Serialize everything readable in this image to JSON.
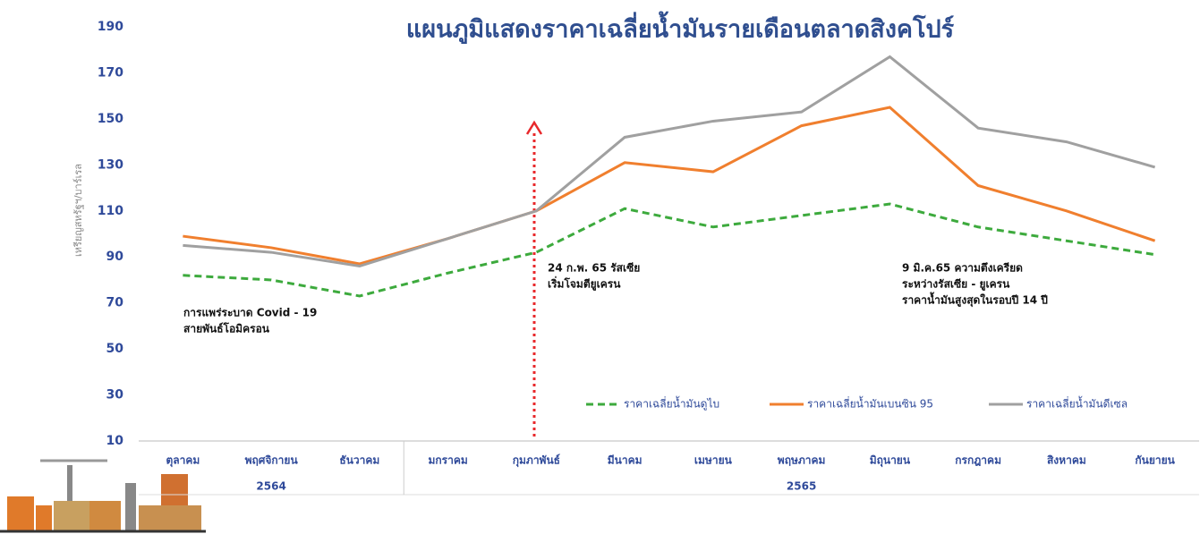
{
  "chart_data": {
    "type": "line",
    "title": "แผนภูมิแสดงราคาเฉลี่ยน้ำมันรายเดือนตลาดสิงคโปร์",
    "y_label": "เหรียญสหรัฐฯ/บาร์เรล",
    "categories": [
      "ตุลาคม",
      "พฤศจิกายน",
      "ธันวาคม",
      "มกราคม",
      "กุมภาพันธ์",
      "มีนาคม",
      "เมษายน",
      "พฤษภาคม",
      "มิถุนายน",
      "กรกฎาคม",
      "สิงหาคม",
      "กันยายน"
    ],
    "year_groups": [
      {
        "label": "2564",
        "count": 3
      },
      {
        "label": "2565",
        "count": 9
      }
    ],
    "series": [
      {
        "name": "ราคาเฉลี่ยน้ำมันดูไบ",
        "color": "#3daa3d",
        "line_style": "dashed",
        "values": [
          82,
          80,
          73,
          83,
          92,
          111,
          103,
          108,
          113,
          103,
          97,
          91
        ]
      },
      {
        "name": "ราคาเฉลี่ยน้ำมันเบนซิน 95",
        "color": "#f07f2e",
        "line_style": "solid",
        "values": [
          99,
          94,
          87,
          98,
          110,
          131,
          127,
          147,
          155,
          121,
          110,
          97
        ]
      },
      {
        "name": "ราคาเฉลี่ยน้ำมันดีเซล",
        "color": "#a0a0a0",
        "line_style": "solid",
        "values": [
          95,
          92,
          86,
          98,
          110,
          142,
          149,
          153,
          177,
          146,
          140,
          129
        ]
      }
    ],
    "annotations": [
      {
        "lines": [
          "การแพร่ระบาด Covid - 19",
          "สายพันธ์โอมิครอน"
        ]
      },
      {
        "lines": [
          "24 ก.พ. 65 รัสเซีย",
          "เริ่มโจมตียูเครน"
        ]
      },
      {
        "lines": [
          "9 มิ.ค.65 ความตึงเครียด",
          "ระหว่างรัสเซีย - ยูเครน",
          "ราคาน้ำมันสูงสุดในรอบปี 14 ปี"
        ]
      }
    ],
    "ylim": [
      10,
      190
    ],
    "yticks": [
      10,
      30,
      50,
      70,
      90,
      110,
      130,
      150,
      170,
      190
    ]
  }
}
